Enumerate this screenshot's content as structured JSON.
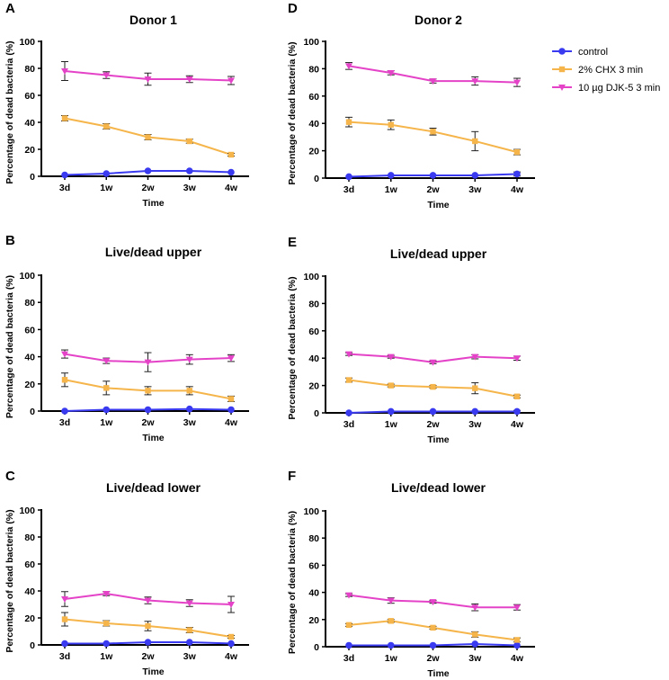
{
  "legend": [
    {
      "name": "control",
      "color": "#3a3af0",
      "marker": "circle"
    },
    {
      "name": "2% CHX 3 min",
      "color": "#f5b54a",
      "marker": "square"
    },
    {
      "name": "10 µg DJK-5 3 min",
      "color": "#e443c8",
      "marker": "triangle-down"
    }
  ],
  "chart_data": [
    {
      "type": "line",
      "panel_label": "A",
      "title": "Donor 1",
      "xlabel": "Time",
      "ylabel": "Percentage of dead bacteria (%)",
      "categories": [
        "3d",
        "1w",
        "2w",
        "3w",
        "4w"
      ],
      "ylim": [
        0,
        100
      ],
      "yticks": [
        "0",
        "20",
        "40",
        "60",
        "80",
        "100"
      ],
      "series": [
        {
          "name": "control",
          "values": [
            1,
            2,
            4,
            4,
            3
          ],
          "errors": [
            0.5,
            0.5,
            0.5,
            0.5,
            0.5
          ]
        },
        {
          "name": "2% CHX 3 min",
          "values": [
            43,
            37,
            29,
            26,
            16
          ],
          "errors": [
            2,
            2,
            2,
            1.5,
            1
          ]
        },
        {
          "name": "10 µg DJK-5 3 min",
          "values": [
            78,
            75,
            72,
            72,
            71
          ],
          "errors": [
            7,
            2.5,
            4.5,
            2.5,
            3
          ]
        }
      ]
    },
    {
      "type": "line",
      "panel_label": "D",
      "title": "Donor 2",
      "xlabel": "Time",
      "ylabel": "Percentage of dead bacteria (%)",
      "categories": [
        "3d",
        "1w",
        "2w",
        "3w",
        "4w"
      ],
      "ylim": [
        0,
        100
      ],
      "yticks": [
        "0",
        "20",
        "40",
        "60",
        "80",
        "100"
      ],
      "series": [
        {
          "name": "control",
          "values": [
            1,
            2,
            2,
            2,
            3
          ],
          "errors": [
            0.5,
            0.5,
            0.5,
            0.5,
            1.5
          ]
        },
        {
          "name": "2% CHX 3 min",
          "values": [
            41,
            39,
            34,
            27,
            19
          ],
          "errors": [
            3.5,
            3.5,
            2.5,
            7,
            2
          ]
        },
        {
          "name": "10 µg DJK-5 3 min",
          "values": [
            82,
            77,
            71,
            71,
            70
          ],
          "errors": [
            2.5,
            1.5,
            1.5,
            3,
            3
          ]
        }
      ]
    },
    {
      "type": "line",
      "panel_label": "B",
      "title": "Live/dead upper",
      "xlabel": "Time",
      "ylabel": "Percentage of dead bacteria (%)",
      "categories": [
        "3d",
        "1w",
        "2w",
        "3w",
        "4w"
      ],
      "ylim": [
        0,
        100
      ],
      "yticks": [
        "0",
        "20",
        "40",
        "60",
        "80",
        "100"
      ],
      "series": [
        {
          "name": "control",
          "values": [
            0,
            1,
            1,
            1.5,
            1
          ],
          "errors": [
            0.3,
            0.3,
            0.5,
            0.5,
            0.5
          ]
        },
        {
          "name": "2% CHX 3 min",
          "values": [
            23,
            17,
            15,
            15,
            9
          ],
          "errors": [
            5,
            5,
            3,
            3,
            2
          ]
        },
        {
          "name": "10 µg DJK-5 3 min",
          "values": [
            42,
            37,
            36,
            38,
            39
          ],
          "errors": [
            3,
            2,
            7,
            3.5,
            2.5
          ]
        }
      ]
    },
    {
      "type": "line",
      "panel_label": "E",
      "title": "Live/dead upper",
      "xlabel": "Time",
      "ylabel": "Percentage of dead bacteria (%)",
      "categories": [
        "3d",
        "1w",
        "2w",
        "3w",
        "4w"
      ],
      "ylim": [
        0,
        100
      ],
      "yticks": [
        "0",
        "20",
        "40",
        "60",
        "80",
        "100"
      ],
      "series": [
        {
          "name": "control",
          "values": [
            0,
            1,
            1,
            1,
            1
          ],
          "errors": [
            0.3,
            0.3,
            0.3,
            0.3,
            0.8
          ]
        },
        {
          "name": "2% CHX 3 min",
          "values": [
            24,
            20,
            19,
            18,
            12
          ],
          "errors": [
            1.5,
            1,
            1,
            4,
            1
          ]
        },
        {
          "name": "10 µg DJK-5 3 min",
          "values": [
            43,
            41,
            37,
            41,
            40
          ],
          "errors": [
            1,
            1,
            1,
            1.5,
            1.5
          ]
        }
      ]
    },
    {
      "type": "line",
      "panel_label": "C",
      "title": "Live/dead lower",
      "xlabel": "Time",
      "ylabel": "Percentage of dead bacteria (%)",
      "categories": [
        "3d",
        "1w",
        "2w",
        "3w",
        "4w"
      ],
      "ylim": [
        0,
        100
      ],
      "yticks": [
        "0",
        "20",
        "40",
        "60",
        "80",
        "100"
      ],
      "series": [
        {
          "name": "control",
          "values": [
            1,
            1,
            2,
            2,
            1
          ],
          "errors": [
            0.3,
            0.3,
            0.5,
            0.5,
            0.5
          ]
        },
        {
          "name": "2% CHX 3 min",
          "values": [
            19,
            16,
            14,
            11,
            6
          ],
          "errors": [
            5,
            2,
            3.5,
            2,
            1
          ]
        },
        {
          "name": "10 µg DJK-5 3 min",
          "values": [
            34,
            38,
            33,
            31,
            30
          ],
          "errors": [
            5.5,
            1.5,
            2.5,
            2.5,
            6
          ]
        }
      ]
    },
    {
      "type": "line",
      "panel_label": "F",
      "title": "Live/dead lower",
      "xlabel": "Time",
      "ylabel": "Percentage of dead bacteria (%)",
      "categories": [
        "3d",
        "1w",
        "2w",
        "3w",
        "4w"
      ],
      "ylim": [
        0,
        100
      ],
      "yticks": [
        "0",
        "20",
        "40",
        "60",
        "80",
        "100"
      ],
      "series": [
        {
          "name": "control",
          "values": [
            1,
            1,
            1,
            2,
            1
          ],
          "errors": [
            0.3,
            0.3,
            0.3,
            0.5,
            0.3
          ]
        },
        {
          "name": "2% CHX 3 min",
          "values": [
            16,
            19,
            14,
            9,
            5
          ],
          "errors": [
            1,
            1,
            1,
            2,
            1.5
          ]
        },
        {
          "name": "10 µg DJK-5 3 min",
          "values": [
            38,
            34,
            33,
            29,
            29
          ],
          "errors": [
            1,
            2,
            1,
            2.5,
            2
          ]
        }
      ]
    }
  ]
}
